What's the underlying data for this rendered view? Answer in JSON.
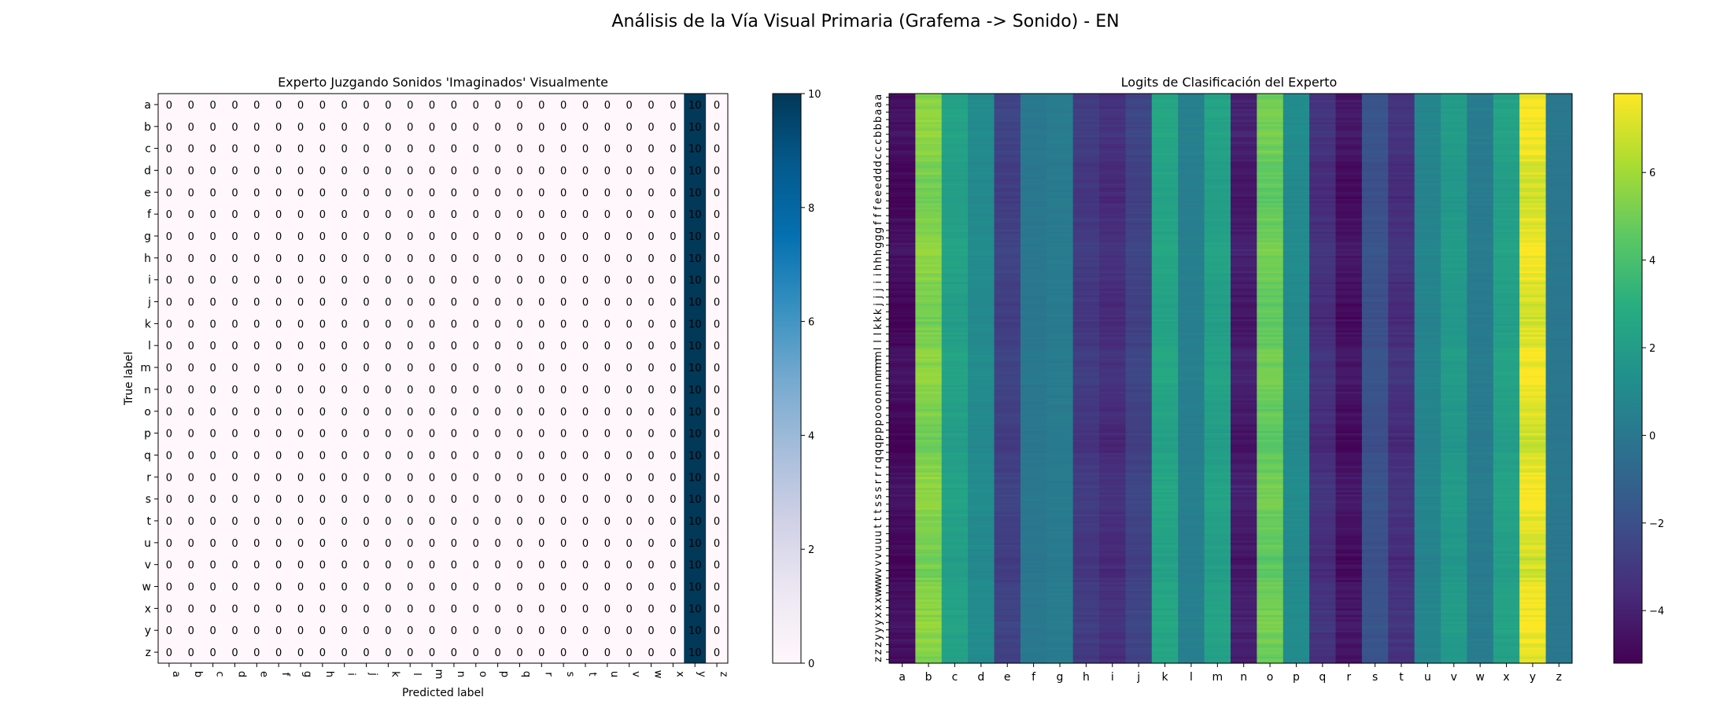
{
  "figure": {
    "title": "Análisis de la Vía Visual Primaria (Grafema -> Sonido) - EN"
  },
  "chart_data": [
    {
      "type": "heatmap",
      "title": "Experto Juzgando Sonidos 'Imaginados' Visualmente",
      "xlabel": "Predicted label",
      "ylabel": "True label",
      "x_categories": [
        "a",
        "b",
        "c",
        "d",
        "e",
        "f",
        "g",
        "h",
        "i",
        "j",
        "k",
        "l",
        "m",
        "n",
        "o",
        "p",
        "q",
        "r",
        "s",
        "t",
        "u",
        "v",
        "w",
        "x",
        "y",
        "z"
      ],
      "y_categories": [
        "a",
        "b",
        "c",
        "d",
        "e",
        "f",
        "g",
        "h",
        "i",
        "j",
        "k",
        "l",
        "m",
        "n",
        "o",
        "p",
        "q",
        "r",
        "s",
        "t",
        "u",
        "v",
        "w",
        "x",
        "y",
        "z"
      ],
      "predicted_column": "y",
      "count_per_row": 10,
      "values_note": "",
      "colorbar": {
        "min": 0,
        "max": 10,
        "ticks": [
          0,
          2,
          4,
          6,
          8,
          10
        ],
        "colormap": "PuBu"
      },
      "grid": false
    },
    {
      "type": "heatmap",
      "title": "Logits de Clasificación del Experto",
      "xlabel": "",
      "ylabel": "",
      "x_categories": [
        "a",
        "b",
        "c",
        "d",
        "e",
        "f",
        "g",
        "h",
        "i",
        "j",
        "k",
        "l",
        "m",
        "n",
        "o",
        "p",
        "q",
        "r",
        "s",
        "t",
        "u",
        "v",
        "w",
        "x",
        "y",
        "z"
      ],
      "y_tick_labels": [
        "a",
        "a",
        "a",
        "b",
        "b",
        "b",
        "c",
        "c",
        "c",
        "d",
        "d",
        "d",
        "e",
        "e",
        "e",
        "f",
        "f",
        "f",
        "g",
        "g",
        "g",
        "h",
        "h",
        "h",
        "i",
        "i",
        "j",
        "j",
        "j",
        "k",
        "k",
        "k",
        "l",
        "l",
        "l",
        "m",
        "m",
        "m",
        "n",
        "n",
        "n",
        "o",
        "o",
        "o",
        "p",
        "p",
        "p",
        "q",
        "q",
        "q",
        "r",
        "r",
        "r",
        "s",
        "s",
        "s",
        "t",
        "t",
        "t",
        "u",
        "u",
        "u",
        "v",
        "v",
        "v",
        "w",
        "w",
        "w",
        "x",
        "x",
        "x",
        "y",
        "y",
        "y",
        "z",
        "z",
        "z"
      ],
      "rows": 260,
      "column_mean_logits": [
        -4.8,
        5.3,
        2.2,
        1.0,
        -2.7,
        0.0,
        0.2,
        -3.0,
        -3.5,
        -2.6,
        2.4,
        0.4,
        2.2,
        -4.2,
        4.8,
        1.0,
        -3.4,
        -4.6,
        -1.9,
        -3.4,
        0.7,
        1.8,
        0.2,
        2.2,
        7.3,
        0.0
      ],
      "colorbar": {
        "min": -5.2,
        "max": 7.8,
        "ticks": [
          -4,
          -2,
          0,
          2,
          4,
          6
        ],
        "tick_labels": [
          "−4",
          "−2",
          "0",
          "2",
          "4",
          "6"
        ],
        "colormap": "viridis"
      },
      "grid": false
    }
  ]
}
